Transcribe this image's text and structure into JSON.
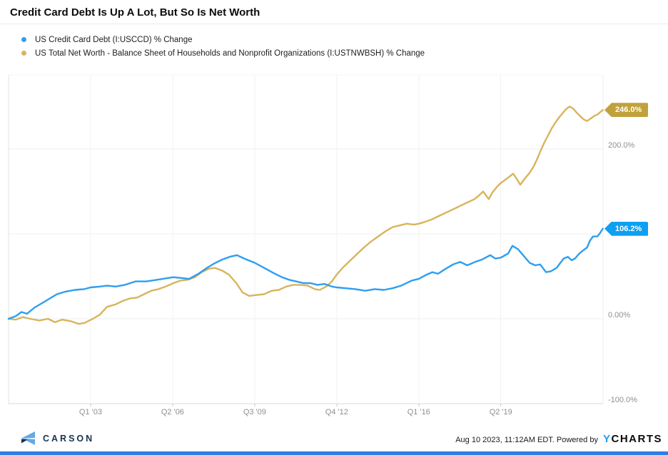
{
  "header": {
    "title": "Credit Card Debt Is Up A Lot, But So Is Net Worth"
  },
  "legend": [
    {
      "label": "US Credit Card Debt (I:USCCD) % Change",
      "color": "#2e9ef0"
    },
    {
      "label": "US Total Net Worth - Balance Sheet of Households and Nonprofit Organizations (I:USTNWBSH) % Change",
      "color": "#d8b45c"
    }
  ],
  "chart_data": {
    "type": "line",
    "title": "Credit Card Debt Is Up A Lot, But So Is Net Worth",
    "xlabel": "",
    "ylabel": "% Change",
    "legend_position": "top-left",
    "grid": true,
    "x_axis": {
      "ticks": [
        {
          "label": "Q1 '03",
          "t": 2003.0
        },
        {
          "label": "Q2 '06",
          "t": 2006.25
        },
        {
          "label": "Q3 '09",
          "t": 2009.5
        },
        {
          "label": "Q4 '12",
          "t": 2012.75
        },
        {
          "label": "Q1 '16",
          "t": 2016.0
        },
        {
          "label": "Q2 '19",
          "t": 2019.25
        }
      ],
      "range": [
        1999.75,
        2023.3
      ]
    },
    "y_axis": {
      "unit": "%",
      "ticks": [
        {
          "label": "200.0%",
          "v": 200
        },
        {
          "label": "0.00%",
          "v": 0
        },
        {
          "label": "-100.0%",
          "v": -100
        }
      ],
      "gridlines": [
        200,
        100,
        0,
        -100
      ],
      "range": [
        -100,
        287
      ]
    },
    "series": [
      {
        "name": "US Credit Card Debt (I:USCCD) % Change",
        "color": "#2e9ef0",
        "end_label": "106.2%",
        "end_label_bg": "#0d9ff2",
        "end_value": 106.2,
        "points": [
          [
            1999.75,
            0
          ],
          [
            2000.03,
            3
          ],
          [
            2000.26,
            8
          ],
          [
            2000.48,
            6
          ],
          [
            2000.77,
            13
          ],
          [
            2001.05,
            18
          ],
          [
            2001.39,
            24
          ],
          [
            2001.67,
            29
          ],
          [
            2002.01,
            32
          ],
          [
            2002.38,
            34
          ],
          [
            2002.75,
            35
          ],
          [
            2003.0,
            37
          ],
          [
            2003.37,
            38
          ],
          [
            2003.65,
            39
          ],
          [
            2003.99,
            38
          ],
          [
            2004.36,
            40
          ],
          [
            2004.78,
            44
          ],
          [
            2005.21,
            44
          ],
          [
            2005.63,
            46
          ],
          [
            2006.05,
            48
          ],
          [
            2006.28,
            49
          ],
          [
            2006.62,
            48
          ],
          [
            2006.9,
            47
          ],
          [
            2007.27,
            53
          ],
          [
            2007.61,
            60
          ],
          [
            2007.89,
            65
          ],
          [
            2008.23,
            70
          ],
          [
            2008.51,
            73
          ],
          [
            2008.8,
            75
          ],
          [
            2009.08,
            71
          ],
          [
            2009.5,
            66
          ],
          [
            2009.87,
            60
          ],
          [
            2010.24,
            54
          ],
          [
            2010.58,
            49
          ],
          [
            2010.86,
            46
          ],
          [
            2011.14,
            44
          ],
          [
            2011.43,
            42
          ],
          [
            2011.71,
            42
          ],
          [
            2011.99,
            40
          ],
          [
            2012.27,
            41
          ],
          [
            2012.56,
            38
          ],
          [
            2012.75,
            37
          ],
          [
            2013.12,
            36
          ],
          [
            2013.49,
            35
          ],
          [
            2013.88,
            33
          ],
          [
            2014.25,
            35
          ],
          [
            2014.62,
            34
          ],
          [
            2014.96,
            36
          ],
          [
            2015.3,
            39
          ],
          [
            2015.72,
            45
          ],
          [
            2016.0,
            47
          ],
          [
            2016.31,
            52
          ],
          [
            2016.54,
            55
          ],
          [
            2016.76,
            53
          ],
          [
            2017.07,
            59
          ],
          [
            2017.36,
            64
          ],
          [
            2017.64,
            67
          ],
          [
            2017.92,
            63
          ],
          [
            2018.23,
            67
          ],
          [
            2018.52,
            70
          ],
          [
            2018.83,
            75
          ],
          [
            2019.03,
            71
          ],
          [
            2019.25,
            72
          ],
          [
            2019.54,
            77
          ],
          [
            2019.71,
            86
          ],
          [
            2019.93,
            82
          ],
          [
            2020.16,
            74
          ],
          [
            2020.39,
            66
          ],
          [
            2020.61,
            63
          ],
          [
            2020.81,
            64
          ],
          [
            2021.04,
            55
          ],
          [
            2021.23,
            56
          ],
          [
            2021.46,
            60
          ],
          [
            2021.74,
            71
          ],
          [
            2021.91,
            73
          ],
          [
            2022.05,
            69
          ],
          [
            2022.19,
            71
          ],
          [
            2022.36,
            77
          ],
          [
            2022.53,
            81
          ],
          [
            2022.67,
            84
          ],
          [
            2022.78,
            92
          ],
          [
            2022.9,
            97
          ],
          [
            2023.07,
            97
          ],
          [
            2023.18,
            101
          ],
          [
            2023.29,
            106.2
          ]
        ]
      },
      {
        "name": "US Total Net Worth - Balance Sheet of Households and Nonprofit Organizations (I:USTNWBSH) % Change",
        "color": "#d8b45c",
        "end_label": "246.0%",
        "end_label_bg": "#c2a13b",
        "end_value": 246.0,
        "points": [
          [
            1999.75,
            0
          ],
          [
            2000.03,
            -1
          ],
          [
            2000.31,
            2
          ],
          [
            2000.6,
            0
          ],
          [
            2000.97,
            -2
          ],
          [
            2001.31,
            0
          ],
          [
            2001.59,
            -4
          ],
          [
            2001.87,
            -1
          ],
          [
            2002.24,
            -3
          ],
          [
            2002.52,
            -6
          ],
          [
            2002.75,
            -5
          ],
          [
            2003.09,
            0
          ],
          [
            2003.37,
            5
          ],
          [
            2003.65,
            14
          ],
          [
            2003.99,
            17
          ],
          [
            2004.27,
            21
          ],
          [
            2004.56,
            24
          ],
          [
            2004.84,
            25
          ],
          [
            2005.12,
            29
          ],
          [
            2005.4,
            33
          ],
          [
            2005.69,
            35
          ],
          [
            2005.97,
            38
          ],
          [
            2006.28,
            42
          ],
          [
            2006.56,
            45
          ],
          [
            2006.85,
            46
          ],
          [
            2007.13,
            49
          ],
          [
            2007.41,
            55
          ],
          [
            2007.69,
            59
          ],
          [
            2007.92,
            60
          ],
          [
            2008.2,
            57
          ],
          [
            2008.48,
            52
          ],
          [
            2008.77,
            42
          ],
          [
            2009.02,
            31
          ],
          [
            2009.28,
            27
          ],
          [
            2009.56,
            28
          ],
          [
            2009.87,
            29
          ],
          [
            2010.18,
            33
          ],
          [
            2010.46,
            34
          ],
          [
            2010.75,
            38
          ],
          [
            2011.03,
            40
          ],
          [
            2011.31,
            40
          ],
          [
            2011.6,
            39
          ],
          [
            2011.88,
            35
          ],
          [
            2012.08,
            34
          ],
          [
            2012.33,
            38
          ],
          [
            2012.56,
            44
          ],
          [
            2012.75,
            52
          ],
          [
            2012.98,
            60
          ],
          [
            2013.26,
            68
          ],
          [
            2013.54,
            76
          ],
          [
            2013.83,
            84
          ],
          [
            2014.11,
            91
          ],
          [
            2014.39,
            97
          ],
          [
            2014.68,
            103
          ],
          [
            2014.96,
            108
          ],
          [
            2015.24,
            110
          ],
          [
            2015.52,
            112
          ],
          [
            2015.81,
            111
          ],
          [
            2016.0,
            112
          ],
          [
            2016.23,
            114
          ],
          [
            2016.51,
            117
          ],
          [
            2016.79,
            121
          ],
          [
            2017.07,
            125
          ],
          [
            2017.36,
            129
          ],
          [
            2017.64,
            133
          ],
          [
            2017.92,
            137
          ],
          [
            2018.21,
            141
          ],
          [
            2018.41,
            146
          ],
          [
            2018.55,
            150
          ],
          [
            2018.77,
            141
          ],
          [
            2018.92,
            149
          ],
          [
            2019.11,
            156
          ],
          [
            2019.25,
            160
          ],
          [
            2019.48,
            165
          ],
          [
            2019.74,
            171
          ],
          [
            2019.88,
            165
          ],
          [
            2020.02,
            158
          ],
          [
            2020.22,
            166
          ],
          [
            2020.39,
            172
          ],
          [
            2020.56,
            180
          ],
          [
            2020.7,
            189
          ],
          [
            2020.84,
            199
          ],
          [
            2020.98,
            208
          ],
          [
            2021.12,
            216
          ],
          [
            2021.26,
            224
          ],
          [
            2021.41,
            231
          ],
          [
            2021.55,
            237
          ],
          [
            2021.69,
            242
          ],
          [
            2021.83,
            247
          ],
          [
            2021.97,
            250
          ],
          [
            2022.11,
            248
          ],
          [
            2022.25,
            243
          ],
          [
            2022.39,
            239
          ],
          [
            2022.53,
            235
          ],
          [
            2022.67,
            233
          ],
          [
            2022.81,
            236
          ],
          [
            2022.95,
            239
          ],
          [
            2023.09,
            241
          ],
          [
            2023.29,
            246
          ]
        ]
      }
    ]
  },
  "footer": {
    "brand": "CARSON",
    "brand_color": "#16324e",
    "timestamp": "Aug 10 2023, 11:12AM EDT. Powered by",
    "ycharts_y": "Y",
    "ycharts_rest": "CHARTS",
    "ycharts_y_color": "#1e9cf0",
    "bar_color": "#2e7de4"
  }
}
